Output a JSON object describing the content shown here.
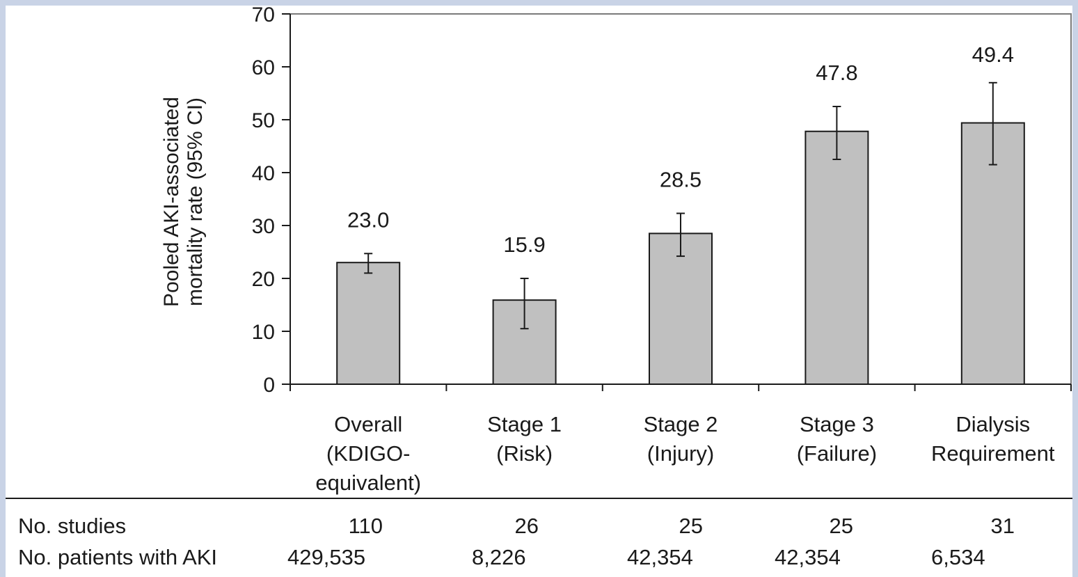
{
  "chart_data": {
    "type": "bar",
    "title": "",
    "xlabel": "",
    "ylabel": [
      "Pooled AKI-associated",
      "mortality rate (95% CI)"
    ],
    "ylim": [
      0,
      70
    ],
    "yticks": [
      0,
      10,
      20,
      30,
      40,
      50,
      60,
      70
    ],
    "grid": false,
    "bar_color": "#c0c0c0",
    "categories": [
      [
        "Overall",
        "(KDIGO-",
        "equivalent)"
      ],
      [
        "Stage 1",
        "(Risk)"
      ],
      [
        "Stage 2",
        "(Injury)"
      ],
      [
        "Stage 3",
        "(Failure)"
      ],
      [
        "Dialysis",
        "Requirement"
      ]
    ],
    "values": [
      23.0,
      15.9,
      28.5,
      47.8,
      49.4
    ],
    "value_labels": [
      "23.0",
      "15.9",
      "28.5",
      "47.8",
      ""
    ],
    "ci_lower": [
      21.0,
      10.5,
      24.2,
      42.5,
      41.5
    ],
    "ci_upper": [
      24.7,
      20.0,
      32.3,
      52.5,
      57.0
    ],
    "top_annotation": "49.4"
  },
  "table": {
    "rows": [
      {
        "label": "No. studies",
        "cells": [
          "110",
          "26",
          "25",
          "25",
          "31"
        ]
      },
      {
        "label": "No. patients with AKI",
        "cells": [
          "429,535",
          "8,226",
          "42,354",
          "42,354",
          "6,534"
        ]
      }
    ]
  }
}
